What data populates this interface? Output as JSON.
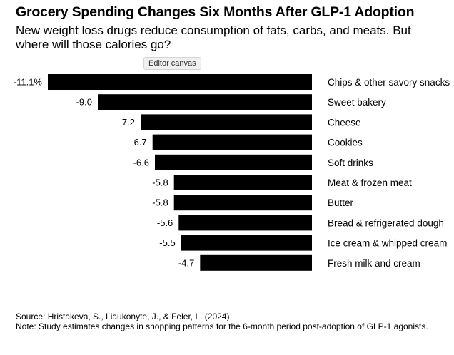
{
  "chart_data": {
    "type": "bar",
    "orientation": "horizontal",
    "title": "Grocery Spending Changes Six Months After GLP-1 Adoption",
    "subtitle": "New weight loss drugs reduce consumption of fats, carbs, and meats. But where will those calories go?",
    "categories": [
      "Chips & other savory snacks",
      "Sweet bakery",
      "Cheese",
      "Cookies",
      "Soft drinks",
      "Meat & frozen meat",
      "Butter",
      "Bread & refrigerated dough",
      "Ice cream & whipped cream",
      "Fresh milk and cream"
    ],
    "values": [
      -11.1,
      -9.0,
      -7.2,
      -6.7,
      -6.6,
      -5.8,
      -5.8,
      -5.6,
      -5.5,
      -4.7
    ],
    "value_labels": [
      "-11.1%",
      "-9.0",
      "-7.2",
      "-6.7",
      "-6.6",
      "-5.8",
      "-5.8",
      "-5.6",
      "-5.5",
      "-4.7"
    ],
    "xlim": [
      -11.1,
      0
    ],
    "grid": false,
    "bar_color": "#000000"
  },
  "tooltip": "Editor canvas",
  "source": "Source: Hristakeva, S., Liaukonyte, J., & Feler, L. (2024)",
  "note": "Note: Study estimates changes in shopping patterns for the 6-month period post-adoption of GLP-1 agonists."
}
